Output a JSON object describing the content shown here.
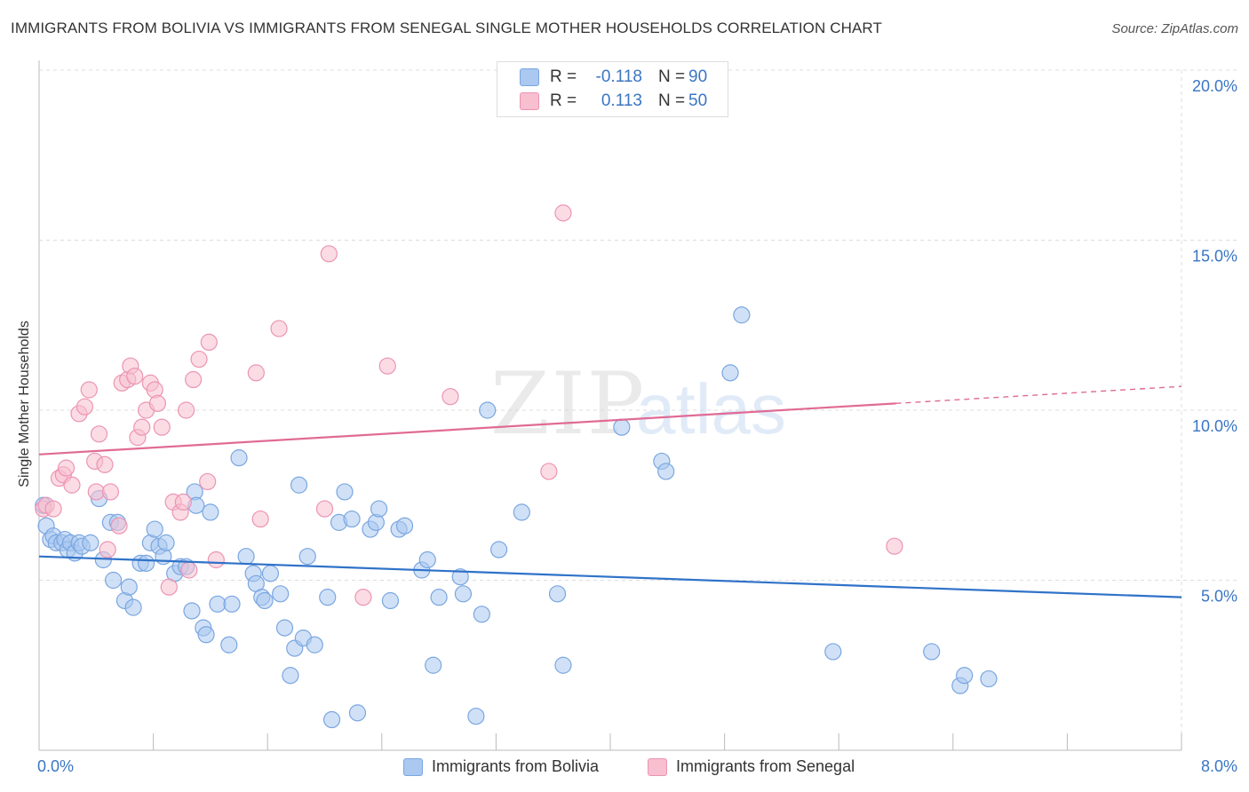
{
  "title": "IMMIGRANTS FROM BOLIVIA VS IMMIGRANTS FROM SENEGAL SINGLE MOTHER HOUSEHOLDS CORRELATION CHART",
  "source": "Source: ZipAtlas.com",
  "watermark": {
    "zip": "ZIP",
    "atlas": "atlas"
  },
  "legend": {
    "rows": [
      {
        "r_label": "R =",
        "r_value": "-0.118",
        "n_label": "N =",
        "n_value": "90"
      },
      {
        "r_label": "R =",
        "r_value": "0.113",
        "n_label": "N =",
        "n_value": "50"
      }
    ],
    "series_names": [
      "Immigrants from Bolivia",
      "Immigrants from Senegal"
    ]
  },
  "colors": {
    "bolivia_fill": "#aac8f0",
    "bolivia_stroke": "#7aa6e0",
    "bolivia_line": "#2f72c9",
    "senegal_fill": "#f7bfd0",
    "senegal_stroke": "#ec94b2",
    "senegal_line": "#e06b95",
    "tick_label": "#3a75c4",
    "grid": "#dddddd"
  },
  "chart_data": {
    "type": "scatter",
    "title": "IMMIGRANTS FROM BOLIVIA VS IMMIGRANTS FROM SENEGAL SINGLE MOTHER HOUSEHOLDS CORRELATION CHART",
    "xlabel": "",
    "ylabel": "Single Mother Households",
    "xlim": [
      0,
      8
    ],
    "ylim": [
      0,
      20
    ],
    "x_tick_labels": [
      "0.0%",
      "8.0%"
    ],
    "y_ticks": [
      5,
      10,
      15,
      20
    ],
    "y_tick_labels": [
      "5.0%",
      "10.0%",
      "15.0%",
      "20.0%"
    ],
    "grid": true,
    "series": [
      {
        "name": "Immigrants from Bolivia",
        "R": -0.118,
        "N": 90,
        "trend": {
          "x": [
            0,
            8
          ],
          "y": [
            5.7,
            4.5
          ],
          "dashed_from": null
        },
        "points": [
          [
            0.03,
            7.2
          ],
          [
            0.05,
            6.6
          ],
          [
            0.08,
            6.2
          ],
          [
            0.1,
            6.3
          ],
          [
            0.12,
            6.1
          ],
          [
            0.16,
            6.1
          ],
          [
            0.18,
            6.2
          ],
          [
            0.2,
            5.9
          ],
          [
            0.22,
            6.1
          ],
          [
            0.25,
            5.8
          ],
          [
            0.28,
            6.1
          ],
          [
            0.3,
            6.0
          ],
          [
            0.36,
            6.1
          ],
          [
            0.42,
            7.4
          ],
          [
            0.45,
            5.6
          ],
          [
            0.5,
            6.7
          ],
          [
            0.52,
            5.0
          ],
          [
            0.55,
            6.7
          ],
          [
            0.6,
            4.4
          ],
          [
            0.63,
            4.8
          ],
          [
            0.66,
            4.2
          ],
          [
            0.71,
            5.5
          ],
          [
            0.75,
            5.5
          ],
          [
            0.78,
            6.1
          ],
          [
            0.81,
            6.5
          ],
          [
            0.84,
            6.0
          ],
          [
            0.87,
            5.7
          ],
          [
            0.89,
            6.1
          ],
          [
            0.95,
            5.2
          ],
          [
            0.99,
            5.4
          ],
          [
            1.03,
            5.4
          ],
          [
            1.07,
            4.1
          ],
          [
            1.09,
            7.6
          ],
          [
            1.1,
            7.2
          ],
          [
            1.15,
            3.6
          ],
          [
            1.17,
            3.4
          ],
          [
            1.2,
            7.0
          ],
          [
            1.25,
            4.3
          ],
          [
            1.33,
            3.1
          ],
          [
            1.35,
            4.3
          ],
          [
            1.4,
            8.6
          ],
          [
            1.45,
            5.7
          ],
          [
            1.5,
            5.2
          ],
          [
            1.52,
            4.9
          ],
          [
            1.56,
            4.5
          ],
          [
            1.58,
            4.4
          ],
          [
            1.62,
            5.2
          ],
          [
            1.69,
            4.6
          ],
          [
            1.72,
            3.6
          ],
          [
            1.76,
            2.2
          ],
          [
            1.79,
            3.0
          ],
          [
            1.82,
            7.8
          ],
          [
            1.85,
            3.3
          ],
          [
            1.88,
            5.7
          ],
          [
            1.93,
            3.1
          ],
          [
            2.02,
            4.5
          ],
          [
            2.05,
            0.9
          ],
          [
            2.1,
            6.7
          ],
          [
            2.14,
            7.6
          ],
          [
            2.19,
            6.8
          ],
          [
            2.23,
            1.1
          ],
          [
            2.32,
            6.5
          ],
          [
            2.36,
            6.7
          ],
          [
            2.38,
            7.1
          ],
          [
            2.46,
            4.4
          ],
          [
            2.52,
            6.5
          ],
          [
            2.56,
            6.6
          ],
          [
            2.68,
            5.3
          ],
          [
            2.72,
            5.6
          ],
          [
            2.76,
            2.5
          ],
          [
            2.8,
            4.5
          ],
          [
            2.95,
            5.1
          ],
          [
            2.97,
            4.6
          ],
          [
            3.06,
            1.0
          ],
          [
            3.1,
            4.0
          ],
          [
            3.14,
            10.0
          ],
          [
            3.22,
            5.9
          ],
          [
            3.38,
            7.0
          ],
          [
            3.63,
            4.6
          ],
          [
            3.67,
            2.5
          ],
          [
            4.08,
            9.5
          ],
          [
            4.36,
            8.5
          ],
          [
            4.39,
            8.2
          ],
          [
            4.84,
            11.1
          ],
          [
            4.92,
            12.8
          ],
          [
            5.56,
            2.9
          ],
          [
            6.25,
            2.9
          ],
          [
            6.45,
            1.9
          ],
          [
            6.48,
            2.2
          ],
          [
            6.65,
            2.1
          ]
        ]
      },
      {
        "name": "Immigrants from Senegal",
        "R": 0.113,
        "N": 50,
        "trend": {
          "x": [
            0,
            8
          ],
          "y": [
            8.7,
            10.7
          ],
          "dashed_from": 6.0
        },
        "points": [
          [
            0.03,
            7.1
          ],
          [
            0.05,
            7.2
          ],
          [
            0.1,
            7.1
          ],
          [
            0.14,
            8.0
          ],
          [
            0.17,
            8.1
          ],
          [
            0.19,
            8.3
          ],
          [
            0.23,
            7.8
          ],
          [
            0.28,
            9.9
          ],
          [
            0.32,
            10.1
          ],
          [
            0.35,
            10.6
          ],
          [
            0.39,
            8.5
          ],
          [
            0.4,
            7.6
          ],
          [
            0.42,
            9.3
          ],
          [
            0.46,
            8.4
          ],
          [
            0.48,
            5.9
          ],
          [
            0.5,
            7.6
          ],
          [
            0.56,
            6.6
          ],
          [
            0.58,
            10.8
          ],
          [
            0.62,
            10.9
          ],
          [
            0.64,
            11.3
          ],
          [
            0.67,
            11.0
          ],
          [
            0.69,
            9.2
          ],
          [
            0.72,
            9.5
          ],
          [
            0.75,
            10.0
          ],
          [
            0.78,
            10.8
          ],
          [
            0.81,
            10.6
          ],
          [
            0.83,
            10.2
          ],
          [
            0.86,
            9.5
          ],
          [
            0.91,
            4.8
          ],
          [
            0.94,
            7.3
          ],
          [
            0.99,
            7.0
          ],
          [
            1.01,
            7.3
          ],
          [
            1.03,
            10.0
          ],
          [
            1.05,
            5.3
          ],
          [
            1.08,
            10.9
          ],
          [
            1.12,
            11.5
          ],
          [
            1.18,
            7.9
          ],
          [
            1.19,
            12.0
          ],
          [
            1.24,
            5.6
          ],
          [
            1.52,
            11.1
          ],
          [
            1.55,
            6.8
          ],
          [
            1.68,
            12.4
          ],
          [
            2.0,
            7.1
          ],
          [
            2.03,
            14.6
          ],
          [
            2.27,
            4.5
          ],
          [
            2.44,
            11.3
          ],
          [
            2.88,
            10.4
          ],
          [
            3.57,
            8.2
          ],
          [
            3.67,
            15.8
          ],
          [
            5.99,
            6.0
          ]
        ]
      }
    ]
  }
}
